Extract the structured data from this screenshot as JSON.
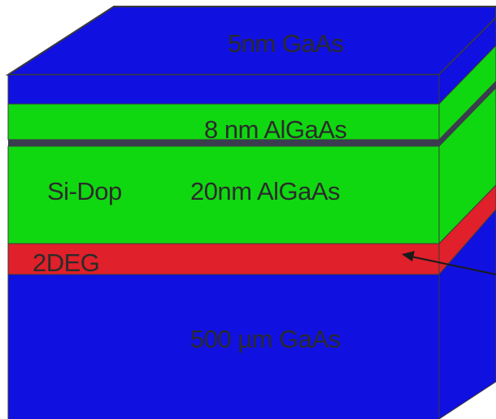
{
  "title": "",
  "colors": {
    "gaas": "#1010e0",
    "algaas": "#10d810",
    "twodeg": "#e0202a",
    "separator": "#3c3c50",
    "edge": "#3a3a3a",
    "label": "#2b2b2b"
  },
  "layers": [
    {
      "id": "cap",
      "label": "5nm GaAs",
      "material": "GaAs",
      "thickness": "5nm"
    },
    {
      "id": "spacer",
      "label": "8 nm AlGaAs",
      "material": "AlGaAs",
      "thickness": "8 nm"
    },
    {
      "id": "doped",
      "label": "20nm AlGaAs",
      "material": "AlGaAs",
      "thickness": "20nm",
      "annotation": "Si-Dop"
    },
    {
      "id": "channel",
      "label": "2DEG"
    },
    {
      "id": "substrate",
      "label": "500 µm GaAs",
      "material": "GaAs",
      "thickness": "500 µm"
    }
  ],
  "pointer": {
    "target": "channel"
  }
}
